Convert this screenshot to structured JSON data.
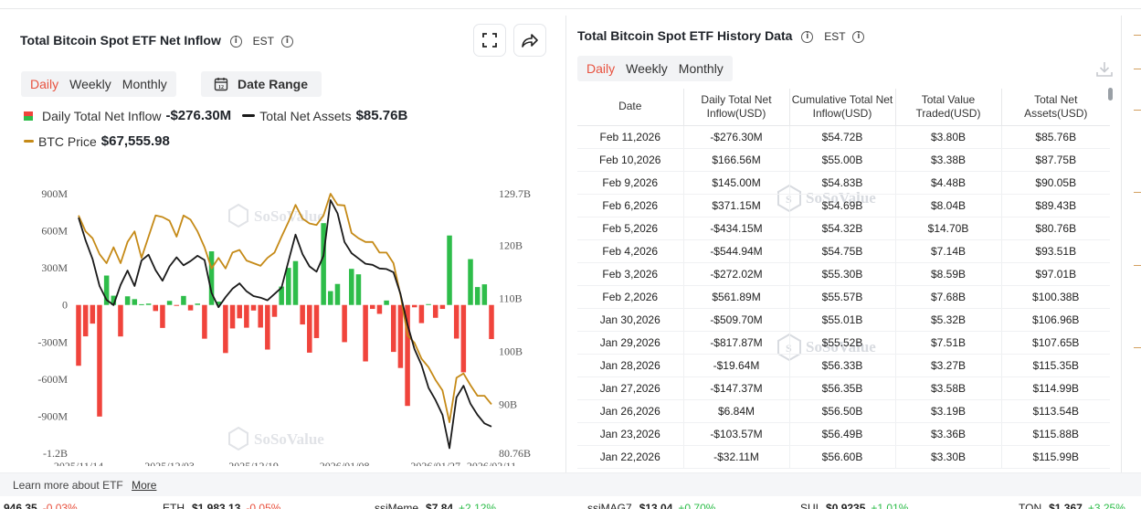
{
  "left_panel": {
    "title": "Total Bitcoin Spot ETF Net Inflow",
    "timezone": "EST",
    "tabs": [
      "Daily",
      "Weekly",
      "Monthly"
    ],
    "active_tab": "Daily",
    "date_range_label": "Date Range",
    "legend": {
      "inflow_label": "Daily Total Net Inflow",
      "inflow_value": "-$276.30M",
      "assets_label": "Total Net Assets",
      "assets_value": "$85.76B",
      "btc_label": "BTC Price",
      "btc_value": "$67,555.98"
    },
    "watermark": "SoSoValue"
  },
  "chart_data": {
    "type": "bar",
    "title": "",
    "y_left_ticks": [
      "900M",
      "600M",
      "300M",
      "0",
      "-300M",
      "-600M",
      "-900M",
      "-1.2B"
    ],
    "y_left_range": [
      -1200,
      900
    ],
    "y_right_ticks": [
      "129.7B",
      "120B",
      "110B",
      "100B",
      "90B",
      "80.76B"
    ],
    "y_right_range": [
      80.76,
      129.7
    ],
    "x_ticks": [
      "2025/11/14",
      "2025/12/03",
      "2025/12/19",
      "2026/01/08",
      "2026/01/27",
      "2026/02/11"
    ],
    "inflow_unit": "M USD",
    "inflow_values": [
      -492,
      -254,
      -151,
      -903,
      238,
      75,
      -255,
      70,
      47,
      6,
      11,
      -49,
      -186,
      33,
      -7,
      73,
      -44,
      11,
      -273,
      434,
      27,
      -389,
      -190,
      -108,
      -184,
      -45,
      -183,
      -361,
      -96,
      149,
      300,
      355,
      -158,
      -386,
      -268,
      662,
      112,
      170,
      -301,
      292,
      248,
      -457,
      -32,
      -72,
      36,
      -380,
      -510,
      -817,
      -19,
      -147,
      7,
      -104,
      -32,
      562,
      -272,
      -545,
      371,
      145,
      167,
      -276
    ],
    "total_net_assets_B": [
      125.2,
      120.9,
      117.4,
      112.3,
      109.7,
      108.7,
      112.5,
      115.2,
      112.3,
      117.1,
      118.2,
      115.3,
      113.3,
      116.0,
      117.7,
      116.2,
      117.0,
      118.0,
      117.2,
      111.0,
      108.3,
      110.2,
      111.8,
      112.8,
      111.3,
      110.4,
      110.1,
      109.6,
      110.8,
      112.0,
      117.0,
      122.0,
      118.3,
      116.0,
      115.0,
      118.0,
      128.5,
      126.0,
      120.6,
      118.5,
      117.5,
      116.5,
      116.3,
      115.6,
      115.5,
      114.9,
      110.8,
      105.0,
      100.4,
      97.4,
      93.1,
      90.8,
      88.0,
      81.7,
      91.3,
      93.5,
      90.1,
      88.0,
      86.4,
      85.8
    ],
    "btc_price_B_axis": [
      125.6,
      122.6,
      121.3,
      118.3,
      116.6,
      119.6,
      116.6,
      120.6,
      122.6,
      117.6,
      121.6,
      125.6,
      125.3,
      124.6,
      121.6,
      125.6,
      124.8,
      122.6,
      119.6,
      115.6,
      117.6,
      115.6,
      118.6,
      119.1,
      117.1,
      116.6,
      116.1,
      117.6,
      118.6,
      121.6,
      124.4,
      127.6,
      125.0,
      124.1,
      123.8,
      125.6,
      129.7,
      127.6,
      127.5,
      122.3,
      121.3,
      120.6,
      120.6,
      118.6,
      118.6,
      116.6,
      110.6,
      103.0,
      101.6,
      98.6,
      97.0,
      94.6,
      92.6,
      86.6,
      95.0,
      95.8,
      93.6,
      91.6,
      91.6,
      90.0
    ],
    "series": [
      {
        "name": "Daily Total Net Inflow",
        "color_pos": "#2ebd4a",
        "color_neg": "#f0443c"
      },
      {
        "name": "Total Net Assets",
        "color": "#1a1a1a"
      },
      {
        "name": "BTC Price",
        "color": "#c58a17"
      }
    ]
  },
  "right_panel": {
    "title": "Total Bitcoin Spot ETF History Data",
    "timezone": "EST",
    "tabs": [
      "Daily",
      "Weekly",
      "Monthly"
    ],
    "active_tab": "Daily",
    "columns": [
      "Date",
      "Daily Total Net Inflow(USD)",
      "Cumulative Total Net Inflow(USD)",
      "Total Value Traded(USD)",
      "Total Net Assets(USD)"
    ],
    "rows": [
      {
        "date": "Feb 11,2026",
        "inflow": "-$276.30M",
        "cumulative": "$54.72B",
        "traded": "$3.80B",
        "assets": "$85.76B",
        "sign": "neg"
      },
      {
        "date": "Feb 10,2026",
        "inflow": "$166.56M",
        "cumulative": "$55.00B",
        "traded": "$3.38B",
        "assets": "$87.75B",
        "sign": "pos"
      },
      {
        "date": "Feb 9,2026",
        "inflow": "$145.00M",
        "cumulative": "$54.83B",
        "traded": "$4.48B",
        "assets": "$90.05B",
        "sign": "pos"
      },
      {
        "date": "Feb 6,2026",
        "inflow": "$371.15M",
        "cumulative": "$54.69B",
        "traded": "$8.04B",
        "assets": "$89.43B",
        "sign": "pos"
      },
      {
        "date": "Feb 5,2026",
        "inflow": "-$434.15M",
        "cumulative": "$54.32B",
        "traded": "$14.70B",
        "assets": "$80.76B",
        "sign": "neg"
      },
      {
        "date": "Feb 4,2026",
        "inflow": "-$544.94M",
        "cumulative": "$54.75B",
        "traded": "$7.14B",
        "assets": "$93.51B",
        "sign": "neg"
      },
      {
        "date": "Feb 3,2026",
        "inflow": "-$272.02M",
        "cumulative": "$55.30B",
        "traded": "$8.59B",
        "assets": "$97.01B",
        "sign": "neg"
      },
      {
        "date": "Feb 2,2026",
        "inflow": "$561.89M",
        "cumulative": "$55.57B",
        "traded": "$7.68B",
        "assets": "$100.38B",
        "sign": "pos"
      },
      {
        "date": "Jan 30,2026",
        "inflow": "-$509.70M",
        "cumulative": "$55.01B",
        "traded": "$5.32B",
        "assets": "$106.96B",
        "sign": "neg"
      },
      {
        "date": "Jan 29,2026",
        "inflow": "-$817.87M",
        "cumulative": "$55.52B",
        "traded": "$7.51B",
        "assets": "$107.65B",
        "sign": "neg"
      },
      {
        "date": "Jan 28,2026",
        "inflow": "-$19.64M",
        "cumulative": "$56.33B",
        "traded": "$3.27B",
        "assets": "$115.35B",
        "sign": "neg"
      },
      {
        "date": "Jan 27,2026",
        "inflow": "-$147.37M",
        "cumulative": "$56.35B",
        "traded": "$3.58B",
        "assets": "$114.99B",
        "sign": "neg"
      },
      {
        "date": "Jan 26,2026",
        "inflow": "$6.84M",
        "cumulative": "$56.50B",
        "traded": "$3.19B",
        "assets": "$113.54B",
        "sign": "pos"
      },
      {
        "date": "Jan 23,2026",
        "inflow": "-$103.57M",
        "cumulative": "$56.49B",
        "traded": "$3.36B",
        "assets": "$115.88B",
        "sign": "neg"
      },
      {
        "date": "Jan 22,2026",
        "inflow": "-$32.11M",
        "cumulative": "$56.60B",
        "traded": "$3.30B",
        "assets": "$115.99B",
        "sign": "neg"
      }
    ]
  },
  "footer": {
    "text": "Learn more about ETF",
    "link": "More"
  },
  "ticker": [
    {
      "name": "",
      "price": "946.35",
      "change": "-0.03%",
      "dir": "down"
    },
    {
      "name": "ETH",
      "price": "$1,983.13",
      "change": "-0.05%",
      "dir": "down"
    },
    {
      "name": "ssiMeme",
      "price": "$7.84",
      "change": "+2.12%",
      "dir": "up"
    },
    {
      "name": "ssiMAG7",
      "price": "$13.04",
      "change": "+0.70%",
      "dir": "up"
    },
    {
      "name": "SUI",
      "price": "$0.9235",
      "change": "+1.01%",
      "dir": "up"
    },
    {
      "name": "TON",
      "price": "$1.367",
      "change": "+3.25%",
      "dir": "up"
    }
  ]
}
